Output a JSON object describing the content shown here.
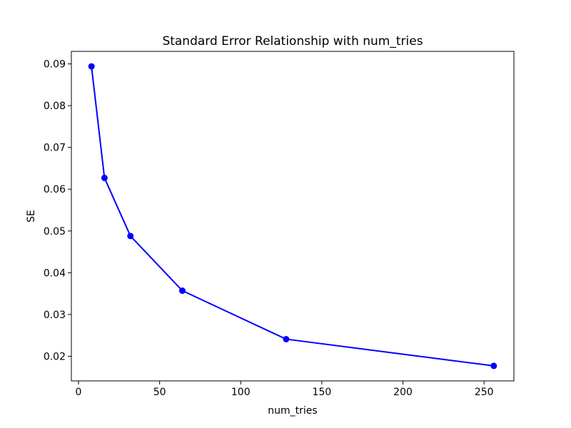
{
  "chart_data": {
    "type": "line",
    "title": "Standard Error Relationship with num_tries",
    "xlabel": "num_tries",
    "ylabel": "SE",
    "series": [
      {
        "name": "SE",
        "x": [
          8,
          16,
          32,
          64,
          128,
          256
        ],
        "y": [
          0.0894,
          0.0627,
          0.0488,
          0.0357,
          0.0241,
          0.0177
        ],
        "color": "#0000ff",
        "marker": "circle",
        "marker_radius": 4.5,
        "line_width": 2
      }
    ],
    "xlim": [
      -4.4,
      268.4
    ],
    "ylim": [
      0.0141,
      0.093
    ],
    "xticks": {
      "values": [
        0,
        50,
        100,
        150,
        200,
        250
      ],
      "labels": [
        "0",
        "50",
        "100",
        "150",
        "200",
        "250"
      ]
    },
    "yticks": {
      "values": [
        0.02,
        0.03,
        0.04,
        0.05,
        0.06,
        0.07,
        0.08,
        0.09
      ],
      "labels": [
        "0.02",
        "0.03",
        "0.04",
        "0.05",
        "0.06",
        "0.07",
        "0.08",
        "0.09"
      ]
    },
    "grid": false,
    "legend": null,
    "colors": {
      "background": "#ffffff",
      "spine": "#000000",
      "text": "#000000"
    }
  }
}
